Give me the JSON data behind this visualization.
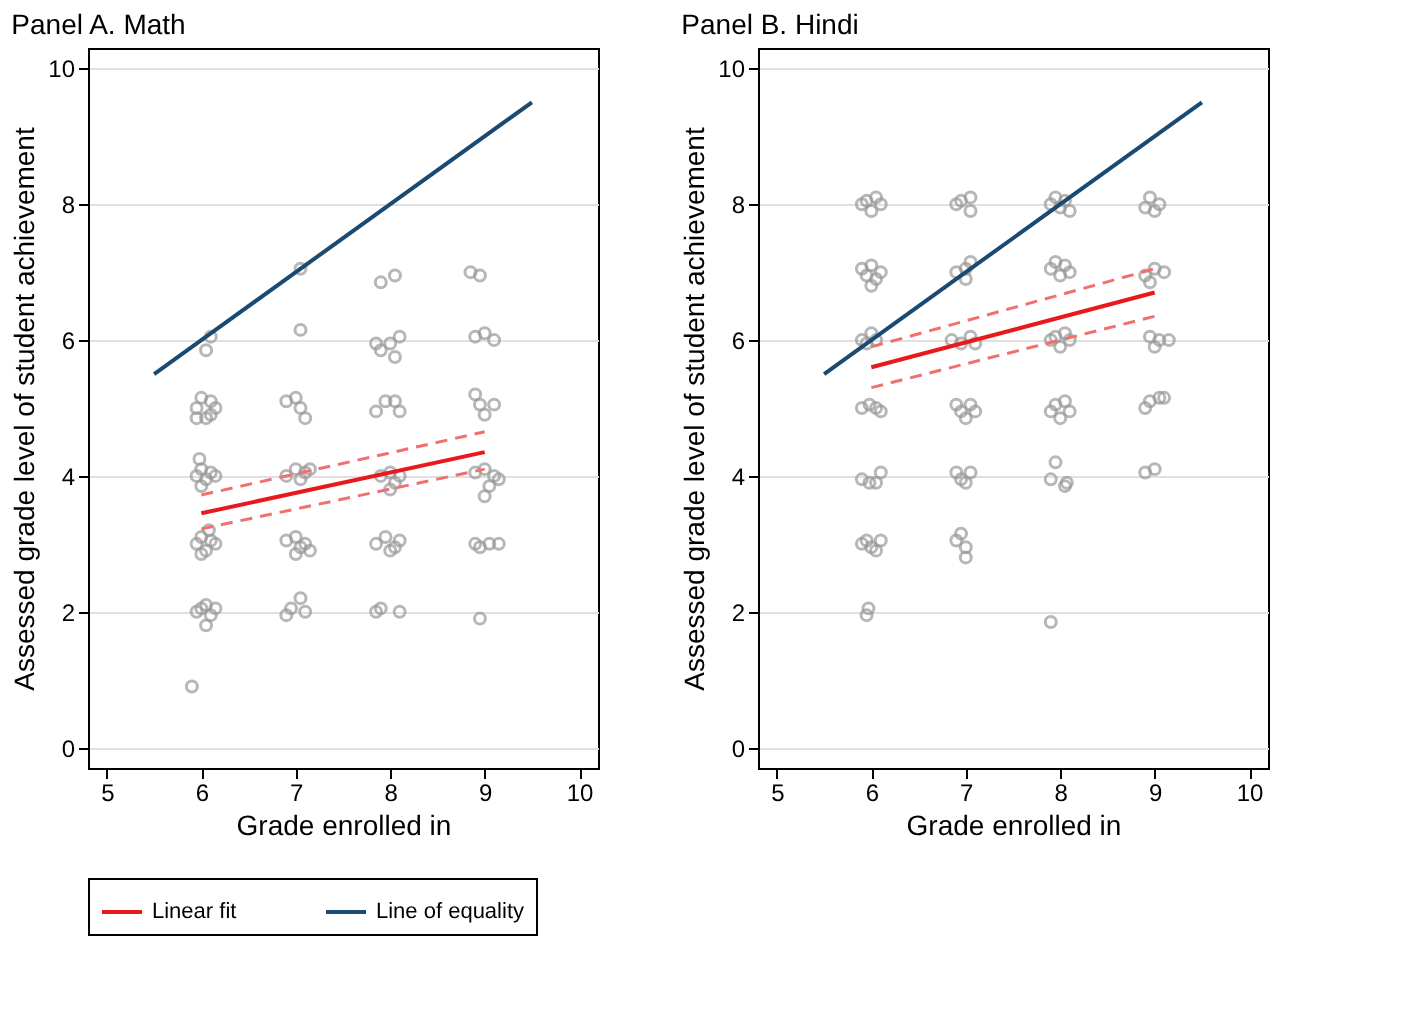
{
  "chart_data": [
    {
      "type": "scatter",
      "title": "Panel A. Math",
      "xlabel": "Grade enrolled in",
      "ylabel": "Assessed grade level of student achievement",
      "xlim": [
        4.8,
        10.2
      ],
      "xticks": [
        5,
        6,
        7,
        8,
        9,
        10
      ],
      "ylim": [
        -0.3,
        10.3
      ],
      "yticks": [
        0,
        2,
        4,
        6,
        8,
        10
      ],
      "grid": "y",
      "legend": "bottom",
      "series": [
        {
          "marker": "circle",
          "color": "#999999",
          "x": [
            5.9,
            5.95,
            6.0,
            6.05,
            6.1,
            6.05,
            6.15,
            5.95,
            6.0,
            6.05,
            6.1,
            6.15,
            6.0,
            6.08,
            5.95,
            6.0,
            6.05,
            6.1,
            6.15,
            6.0,
            5.98,
            5.95,
            6.0,
            6.1,
            6.15,
            6.05,
            6.1,
            5.95,
            6.05,
            6.1,
            6.9,
            6.95,
            7.05,
            7.1,
            6.9,
            7.0,
            7.05,
            7.1,
            7.0,
            7.15,
            6.9,
            7.0,
            7.05,
            7.1,
            7.15,
            6.9,
            7.0,
            7.05,
            7.1,
            7.05,
            7.05,
            7.85,
            7.9,
            8.1,
            7.85,
            7.95,
            8.05,
            8.1,
            8.0,
            7.9,
            8.0,
            8.05,
            8.1,
            8.0,
            7.85,
            7.95,
            8.05,
            8.1,
            7.85,
            7.9,
            8.0,
            8.1,
            8.05,
            7.9,
            8.05,
            8.95,
            8.9,
            8.95,
            9.05,
            9.15,
            8.9,
            9.0,
            9.05,
            9.1,
            9.0,
            9.15,
            8.9,
            8.95,
            9.0,
            9.1,
            8.9,
            9.0,
            9.1,
            8.85,
            8.95
          ],
          "values": [
            0.9,
            2.0,
            2.05,
            2.1,
            1.95,
            1.8,
            2.05,
            3.0,
            3.1,
            2.9,
            3.05,
            3.0,
            2.85,
            3.2,
            4.0,
            4.1,
            3.95,
            4.05,
            4.0,
            3.85,
            4.25,
            5.0,
            5.15,
            5.1,
            5.0,
            4.85,
            4.9,
            4.85,
            5.85,
            6.05,
            1.95,
            2.05,
            2.2,
            2.0,
            3.05,
            3.1,
            2.95,
            3.0,
            2.85,
            2.9,
            4.0,
            4.1,
            3.95,
            4.05,
            4.1,
            5.1,
            5.15,
            5.0,
            4.85,
            6.15,
            7.05,
            2.0,
            2.05,
            2.0,
            3.0,
            3.1,
            2.95,
            3.05,
            2.9,
            4.0,
            4.05,
            3.9,
            4.0,
            3.8,
            4.95,
            5.1,
            5.1,
            4.95,
            5.95,
            5.85,
            5.95,
            6.05,
            5.75,
            6.85,
            6.95,
            1.9,
            3.0,
            2.95,
            3.0,
            3.0,
            4.05,
            4.1,
            3.85,
            4.0,
            3.7,
            3.95,
            5.2,
            5.05,
            4.9,
            5.05,
            6.05,
            6.1,
            6.0,
            7.0,
            6.95
          ]
        },
        {
          "type": "line",
          "name": "Linear fit",
          "color": "#e8191c",
          "x": [
            6,
            9
          ],
          "values": [
            3.45,
            4.35
          ]
        },
        {
          "type": "line",
          "color": "#f07070",
          "line_style": "dashed",
          "x": [
            6,
            9
          ],
          "values": [
            3.22,
            4.1
          ]
        },
        {
          "type": "line",
          "color": "#f07070",
          "line_style": "dashed",
          "x": [
            6,
            9
          ],
          "values": [
            3.72,
            4.65
          ]
        },
        {
          "type": "line",
          "name": "Line of equality",
          "color": "#1a4a72",
          "x": [
            5.5,
            9.5
          ],
          "values": [
            5.5,
            9.5
          ]
        }
      ]
    },
    {
      "type": "scatter",
      "title": "Panel B. Hindi",
      "xlabel": "Grade enrolled in",
      "ylabel": "Assessed grade level of student achievement",
      "xlim": [
        4.8,
        10.2
      ],
      "xticks": [
        5,
        6,
        7,
        8,
        9,
        10
      ],
      "ylim": [
        -0.3,
        10.3
      ],
      "yticks": [
        0,
        2,
        4,
        6,
        8,
        10
      ],
      "grid": "y",
      "legend": "bottom",
      "series": [
        {
          "marker": "circle",
          "color": "#999999",
          "x": [
            5.95,
            5.97,
            5.9,
            5.95,
            6.0,
            6.05,
            6.1,
            5.9,
            5.98,
            6.05,
            6.1,
            5.9,
            5.98,
            6.05,
            6.1,
            5.9,
            5.95,
            6.0,
            6.05,
            5.9,
            5.95,
            6.0,
            6.05,
            6.1,
            6.0,
            5.9,
            5.95,
            6.0,
            6.05,
            6.1,
            6.9,
            6.95,
            7.0,
            7.0,
            6.9,
            6.95,
            7.05,
            7.0,
            6.9,
            6.95,
            7.05,
            7.1,
            7.0,
            6.85,
            6.95,
            7.05,
            7.1,
            6.9,
            7.0,
            7.05,
            7.0,
            6.9,
            6.95,
            7.05,
            7.05,
            7.9,
            7.9,
            7.95,
            8.05,
            8.07,
            7.9,
            7.95,
            8.05,
            8.1,
            8.0,
            7.9,
            7.95,
            8.0,
            8.05,
            8.1,
            7.9,
            7.95,
            8.0,
            8.05,
            8.1,
            7.9,
            7.95,
            8.0,
            8.05,
            8.1,
            8.9,
            9.0,
            8.9,
            8.95,
            9.05,
            9.1,
            8.95,
            9.0,
            9.05,
            9.15,
            8.9,
            9.0,
            9.1,
            8.95,
            8.9,
            8.95,
            9.0,
            9.05
          ],
          "values": [
            1.95,
            2.05,
            3.0,
            3.05,
            2.95,
            2.9,
            3.05,
            3.95,
            3.9,
            3.9,
            4.05,
            5.0,
            5.05,
            5.0,
            4.95,
            6.0,
            5.95,
            6.1,
            6.0,
            7.05,
            6.95,
            7.1,
            6.9,
            7.0,
            6.8,
            8.0,
            8.05,
            7.9,
            8.1,
            8.0,
            3.05,
            3.15,
            2.95,
            2.8,
            4.05,
            3.95,
            4.05,
            3.9,
            5.05,
            4.95,
            5.05,
            4.95,
            4.85,
            6.0,
            5.95,
            6.05,
            5.95,
            7.0,
            7.05,
            7.15,
            6.9,
            8.0,
            8.05,
            8.1,
            7.9,
            1.85,
            3.95,
            4.2,
            3.85,
            3.9,
            4.95,
            5.05,
            5.1,
            4.95,
            4.85,
            6.0,
            6.05,
            5.9,
            6.1,
            6.0,
            7.05,
            7.15,
            6.95,
            7.1,
            7.0,
            8.0,
            8.1,
            7.95,
            8.05,
            7.9,
            4.05,
            4.1,
            5.0,
            5.1,
            5.15,
            5.15,
            6.05,
            5.9,
            6.0,
            6.0,
            6.95,
            7.05,
            7.0,
            6.85,
            7.95,
            8.1,
            7.9,
            8.0
          ]
        },
        {
          "type": "line",
          "name": "Linear fit",
          "color": "#e8191c",
          "x": [
            6,
            9
          ],
          "values": [
            5.6,
            6.7
          ]
        },
        {
          "type": "line",
          "color": "#f07070",
          "line_style": "dashed",
          "x": [
            6,
            9
          ],
          "values": [
            5.3,
            6.35
          ]
        },
        {
          "type": "line",
          "color": "#f07070",
          "line_style": "dashed",
          "x": [
            6,
            9
          ],
          "values": [
            5.9,
            7.05
          ]
        },
        {
          "type": "line",
          "name": "Line of equality",
          "color": "#1a4a72",
          "x": [
            5.5,
            9.5
          ],
          "values": [
            5.5,
            9.5
          ]
        }
      ]
    }
  ]
}
